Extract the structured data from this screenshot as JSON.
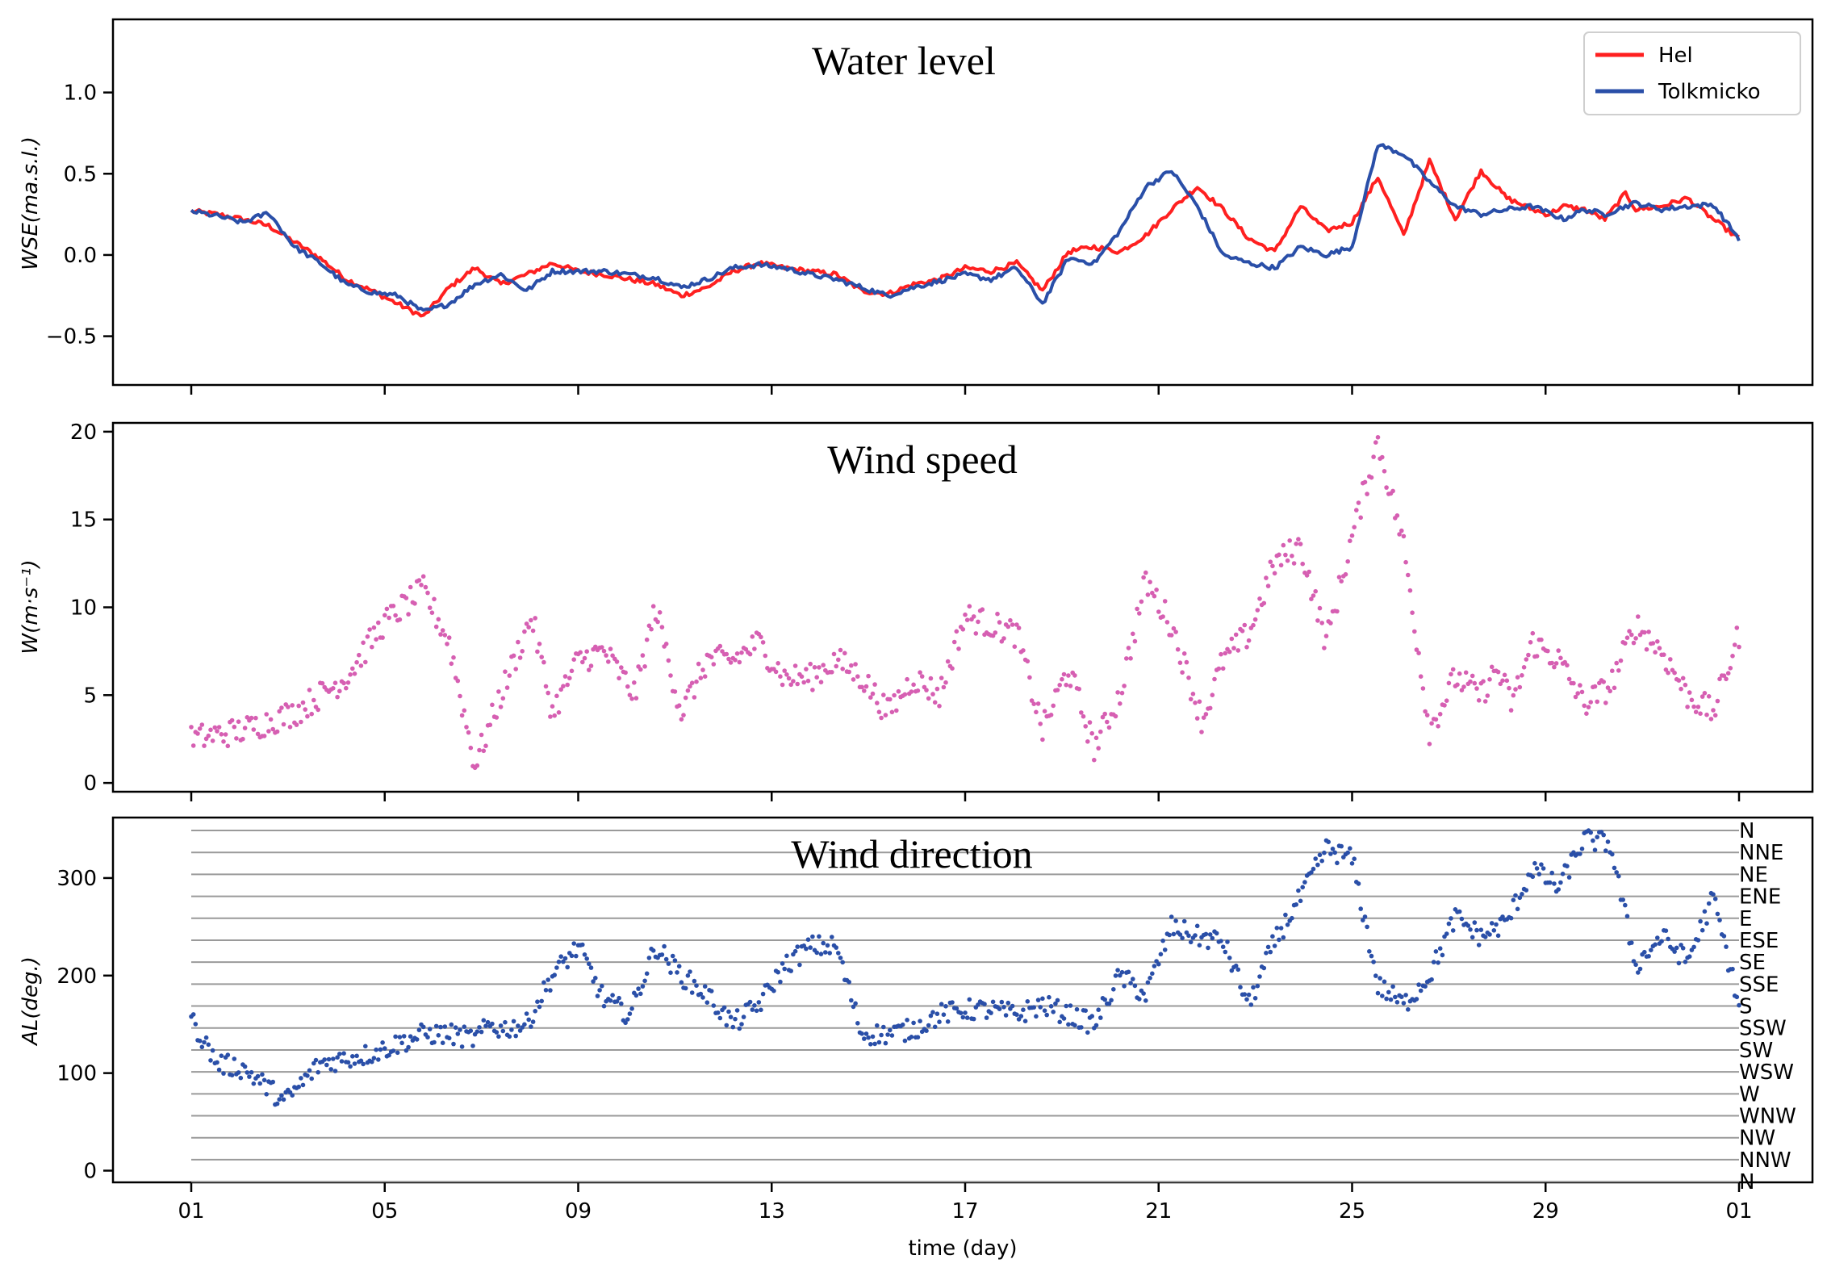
{
  "chart_data": [
    {
      "type": "line",
      "title": "Water level",
      "xlabel": "",
      "ylabel": "WSE(ma.s.l.)",
      "ylim": [
        -0.8,
        1.45
      ],
      "yticks": [
        "−0.5",
        "0.0",
        "0.5",
        "1.0"
      ],
      "xlim": [
        0,
        30
      ],
      "xticks": [
        "01",
        "05",
        "09",
        "13",
        "17",
        "21",
        "25",
        "29",
        "01"
      ],
      "legend": "top-right",
      "series": [
        {
          "name": "Hel",
          "color": "#ff2020",
          "x": [
            0,
            0.5,
            1,
            1.5,
            2,
            2.5,
            3,
            3.5,
            4,
            4.5,
            5,
            5.5,
            6,
            6.5,
            7,
            7.5,
            8,
            8.5,
            9,
            9.5,
            10,
            10.5,
            11,
            11.5,
            12,
            12.5,
            13,
            13.5,
            14,
            14.5,
            15,
            15.5,
            16,
            16.5,
            17,
            17.5,
            18,
            18.5,
            19,
            19.5,
            20,
            20.5,
            21,
            21.5,
            22,
            22.5,
            23,
            23.5,
            24,
            24.5,
            25,
            25.5,
            26,
            26.3,
            26.6,
            27,
            27.4,
            27.8,
            28,
            28.5,
            29,
            29.5,
            30
          ],
          "values": [
            0.27,
            0.25,
            0.22,
            0.18,
            0.08,
            -0.02,
            -0.15,
            -0.22,
            -0.3,
            -0.38,
            -0.2,
            -0.08,
            -0.18,
            -0.12,
            -0.05,
            -0.1,
            -0.12,
            -0.15,
            -0.18,
            -0.25,
            -0.2,
            -0.1,
            -0.05,
            -0.08,
            -0.1,
            -0.12,
            -0.22,
            -0.24,
            -0.18,
            -0.15,
            -0.08,
            -0.1,
            -0.05,
            -0.22,
            0.02,
            0.05,
            0.02,
            0.12,
            0.28,
            0.42,
            0.28,
            0.1,
            0.02,
            0.3,
            0.15,
            0.2,
            0.48,
            0.12,
            0.58,
            0.22,
            0.52,
            0.35,
            0.28,
            0.25,
            0.3,
            0.28,
            0.22,
            0.38,
            0.28,
            0.3,
            0.35,
            0.22,
            0.1
          ]
        },
        {
          "name": "Tolkmicko",
          "color": "#2a4fa8",
          "x": [
            0,
            0.5,
            1,
            1.5,
            2,
            2.5,
            3,
            3.5,
            4,
            4.5,
            5,
            5.5,
            6,
            6.5,
            7,
            7.5,
            8,
            8.5,
            9,
            9.5,
            10,
            10.5,
            11,
            11.5,
            12,
            12.5,
            13,
            13.5,
            14,
            14.5,
            15,
            15.5,
            16,
            16.5,
            17,
            17.5,
            18,
            18.5,
            19,
            19.5,
            20,
            20.5,
            21,
            21.5,
            22,
            22.5,
            23,
            23.5,
            24,
            24.5,
            25,
            25.5,
            26,
            26.3,
            26.6,
            27,
            27.4,
            27.8,
            28,
            28.5,
            29,
            29.5,
            30
          ],
          "values": [
            0.27,
            0.24,
            0.2,
            0.26,
            0.05,
            -0.05,
            -0.18,
            -0.23,
            -0.25,
            -0.35,
            -0.3,
            -0.18,
            -0.12,
            -0.22,
            -0.1,
            -0.1,
            -0.1,
            -0.12,
            -0.14,
            -0.2,
            -0.15,
            -0.08,
            -0.06,
            -0.08,
            -0.12,
            -0.15,
            -0.2,
            -0.25,
            -0.2,
            -0.16,
            -0.12,
            -0.15,
            -0.08,
            -0.3,
            -0.02,
            -0.05,
            0.15,
            0.42,
            0.52,
            0.3,
            0.0,
            -0.05,
            -0.08,
            0.05,
            0.0,
            0.05,
            0.68,
            0.62,
            0.45,
            0.3,
            0.25,
            0.28,
            0.3,
            0.26,
            0.22,
            0.28,
            0.25,
            0.3,
            0.32,
            0.28,
            0.3,
            0.31,
            0.1
          ]
        }
      ]
    },
    {
      "type": "scatter",
      "title": "Wind speed",
      "xlabel": "",
      "ylabel": "W(m·s⁻¹)",
      "ylim": [
        -0.5,
        20.5
      ],
      "yticks": [
        "0",
        "5",
        "10",
        "15",
        "20"
      ],
      "xlim": [
        0,
        30
      ],
      "xticks": [
        "01",
        "05",
        "09",
        "13",
        "17",
        "21",
        "25",
        "29",
        "01"
      ],
      "color": "#d65fb2",
      "keypoints_x": [
        0,
        1,
        2,
        3,
        3.7,
        4.5,
        5,
        5.5,
        6,
        6.6,
        7,
        7.5,
        8,
        8.6,
        9,
        9.5,
        10,
        10.5,
        11,
        11.5,
        12,
        12.5,
        13,
        13.5,
        14,
        14.5,
        15,
        15.5,
        16,
        16.5,
        17,
        17.5,
        18,
        18.5,
        19,
        19.6,
        20,
        20.5,
        21,
        21.5,
        22,
        22.5,
        23,
        23.5,
        24,
        24.5,
        25,
        25.3,
        25.6,
        26,
        26.5,
        27,
        27.5,
        28,
        28.5,
        29,
        29.5,
        30
      ],
      "keypoints_values": [
        2.5,
        3.0,
        4.0,
        6.0,
        9.0,
        11.0,
        8.0,
        1.0,
        5.0,
        9.5,
        4.0,
        7.0,
        7.5,
        5.0,
        10.0,
        4.0,
        7.0,
        7.0,
        8.0,
        6.0,
        6.0,
        7.0,
        6.0,
        4.0,
        6.0,
        5.0,
        9.5,
        9.0,
        8.5,
        3.0,
        6.5,
        2.0,
        5.0,
        11.5,
        9.0,
        3.5,
        7.0,
        8.5,
        12.5,
        13.5,
        8.0,
        14.0,
        19.5,
        13.5,
        3.0,
        6.0,
        5.0,
        6.5,
        4.5,
        8.0,
        7.0,
        4.5,
        5.5,
        9.0,
        7.5,
        5.0,
        4.0,
        8.5
      ]
    },
    {
      "type": "scatter",
      "title": "Wind direction",
      "xlabel": "time (day)",
      "ylabel": "AL(deg.)",
      "ylim": [
        -12,
        362
      ],
      "yticks": [
        "0",
        "100",
        "200",
        "300"
      ],
      "xlim": [
        0,
        30
      ],
      "xticks": [
        "01",
        "05",
        "09",
        "13",
        "17",
        "21",
        "25",
        "29",
        "01"
      ],
      "color": "#2a4fa8",
      "reference_lines_deg": [
        -11.25,
        11.25,
        33.75,
        56.25,
        78.75,
        101.25,
        123.75,
        146.25,
        168.75,
        191.25,
        213.75,
        236.25,
        258.75,
        281.25,
        303.75,
        326.25,
        348.75
      ],
      "direction_labels": [
        "N",
        "NNW",
        "NW",
        "WNW",
        "W",
        "WSW",
        "SW",
        "SSW",
        "S",
        "SSE",
        "SE",
        "ESE",
        "E",
        "ENE",
        "NE",
        "NNE",
        "N"
      ],
      "keypoints_x": [
        0,
        0.5,
        1,
        1.5,
        1.8,
        2.5,
        3,
        3.5,
        4,
        4.5,
        5,
        5.5,
        5.8,
        6,
        6.5,
        7,
        7.5,
        8,
        8.5,
        9,
        9.5,
        10,
        10.5,
        11,
        11.5,
        12,
        12.5,
        13,
        13.5,
        14,
        14.5,
        15,
        15.5,
        16,
        16.5,
        17,
        17.5,
        18,
        18.5,
        19,
        19.5,
        20,
        20.5,
        21,
        21.5,
        22,
        22.5,
        23,
        23.5,
        24,
        24.5,
        25,
        25.5,
        26,
        26.5,
        27,
        27.5,
        28,
        28.5,
        29,
        29.5,
        30
      ],
      "keypoints_values": [
        155,
        110,
        105,
        85,
        70,
        110,
        115,
        120,
        130,
        140,
        140,
        135,
        150,
        145,
        150,
        200,
        230,
        175,
        160,
        230,
        200,
        180,
        150,
        170,
        210,
        230,
        230,
        140,
        140,
        145,
        160,
        165,
        165,
        160,
        170,
        160,
        150,
        200,
        180,
        250,
        240,
        235,
        170,
        235,
        280,
        330,
        320,
        190,
        170,
        200,
        260,
        240,
        255,
        310,
        290,
        340,
        335,
        210,
        240,
        215,
        280,
        170
      ]
    }
  ]
}
